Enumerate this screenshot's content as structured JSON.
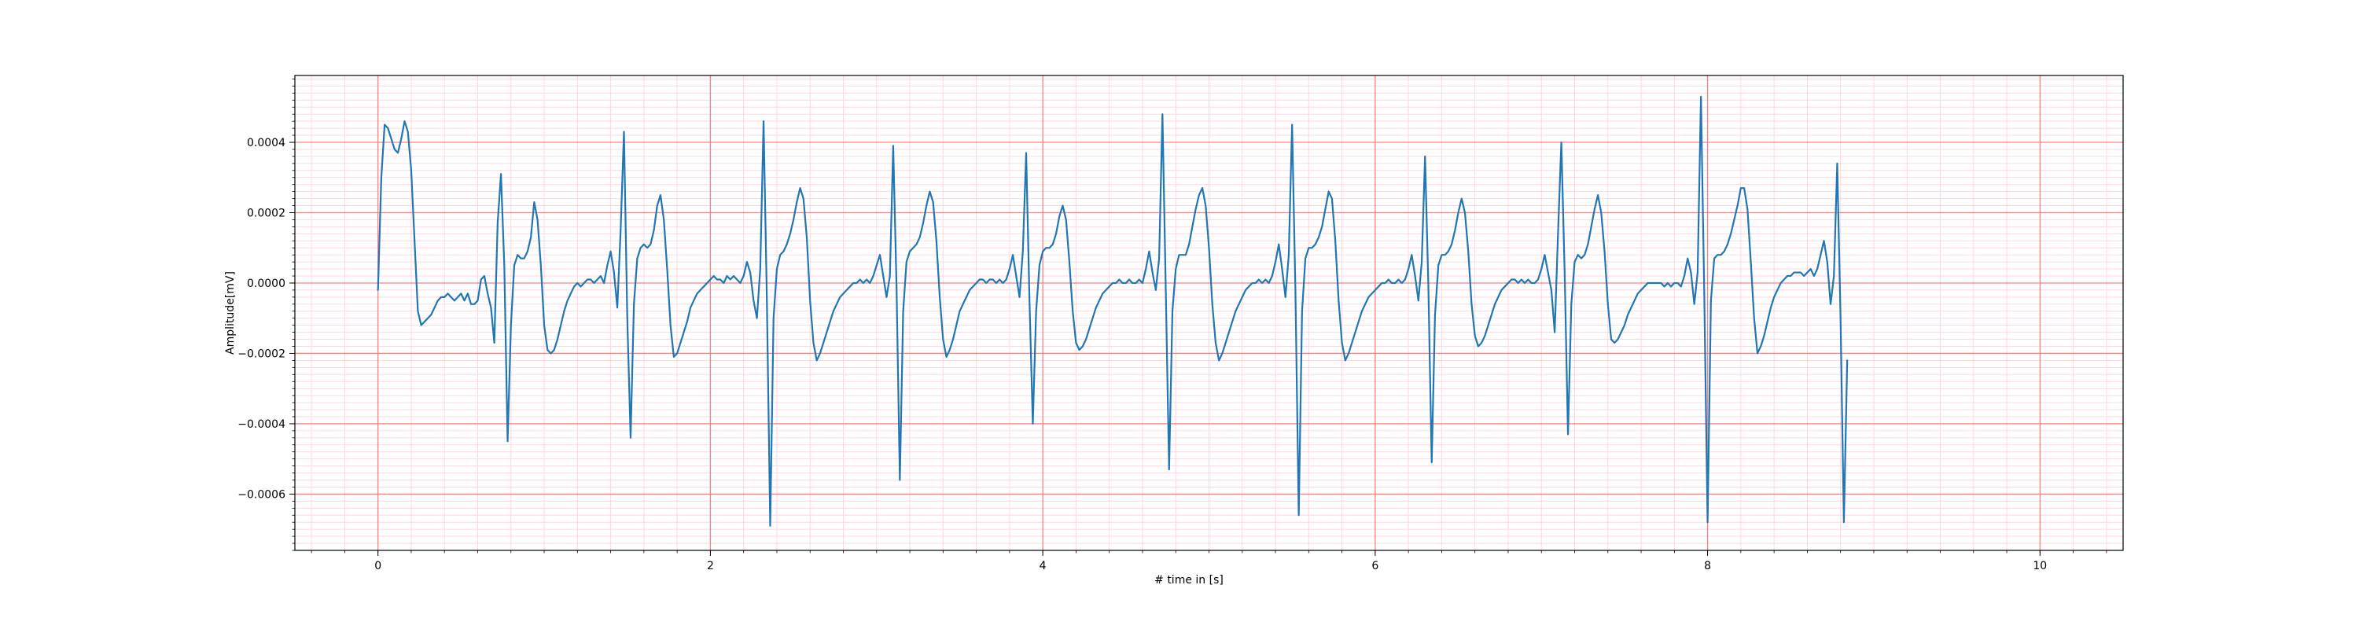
{
  "chart_data": {
    "type": "line",
    "title": "",
    "xlabel": "# time in [s]",
    "ylabel": "Amplitude[mV]",
    "xlim": [
      -0.5,
      10.5
    ],
    "ylim": [
      -0.00076,
      0.00059
    ],
    "x_ticks": [
      0,
      2,
      4,
      6,
      8,
      10
    ],
    "x_tick_labels": [
      "0",
      "2",
      "4",
      "6",
      "8",
      "10"
    ],
    "y_ticks": [
      -0.0006,
      -0.0004,
      -0.0002,
      0.0,
      0.0002,
      0.0004
    ],
    "y_tick_labels": [
      "−0.0006",
      "−0.0004",
      "−0.0002",
      "0.0000",
      "0.0002",
      "0.0004"
    ],
    "grid": {
      "major": true,
      "minor": true,
      "major_color": "#ff8080",
      "minor_color": "#ffd6e0"
    },
    "legend": "none",
    "line_color": "#1f77b4",
    "sampling": {
      "x_start": 0.0,
      "x_end": 10.0,
      "step": 0.02
    },
    "series": [
      {
        "values": [
          -2e-05,
          0.0003,
          0.00045,
          0.00044,
          0.00041,
          0.00038,
          0.00037,
          0.00041,
          0.00046,
          0.00043,
          0.00032,
          0.00012,
          -8e-05,
          -0.00012,
          -0.00011,
          -0.0001,
          -9e-05,
          -7e-05,
          -5e-05,
          -4e-05,
          -4e-05,
          -3e-05,
          -4e-05,
          -5e-05,
          -4e-05,
          -3e-05,
          -5e-05,
          -3e-05,
          -6e-05,
          -6e-05,
          -5e-05,
          1e-05,
          2e-05,
          -3e-05,
          -7e-05,
          -0.00017,
          0.00017,
          0.00031,
          5e-05,
          -0.00045,
          -0.00012,
          5e-05,
          8e-05,
          7e-05,
          7e-05,
          9e-05,
          0.00013,
          0.00023,
          0.00018,
          5e-05,
          -0.00012,
          -0.00019,
          -0.0002,
          -0.00019,
          -0.00016,
          -0.00012,
          -8e-05,
          -5e-05,
          -3e-05,
          -1e-05,
          0.0,
          -1e-05,
          0.0,
          1e-05,
          1e-05,
          0.0,
          1e-05,
          2e-05,
          0.0,
          5e-05,
          9e-05,
          3e-05,
          -7e-05,
          0.00015,
          0.00043,
          -0.0001,
          -0.00044,
          -6e-05,
          7e-05,
          0.0001,
          0.00011,
          0.0001,
          0.00011,
          0.00015,
          0.00022,
          0.00025,
          0.00018,
          4e-05,
          -0.00012,
          -0.00021,
          -0.0002,
          -0.00017,
          -0.00014,
          -0.00011,
          -7e-05,
          -5e-05,
          -3e-05,
          -2e-05,
          -1e-05,
          0.0,
          1e-05,
          2e-05,
          1e-05,
          1e-05,
          0.0,
          2e-05,
          1e-05,
          2e-05,
          1e-05,
          0.0,
          2e-05,
          6e-05,
          3e-05,
          -5e-05,
          -0.0001,
          4e-05,
          0.00046,
          -5e-05,
          -0.00069,
          -0.0001,
          4e-05,
          8e-05,
          9e-05,
          0.00011,
          0.00014,
          0.00018,
          0.00023,
          0.00027,
          0.00024,
          0.00013,
          -5e-05,
          -0.00017,
          -0.00022,
          -0.0002,
          -0.00017,
          -0.00014,
          -0.00011,
          -8e-05,
          -6e-05,
          -4e-05,
          -3e-05,
          -2e-05,
          -1e-05,
          0.0,
          0.0,
          1e-05,
          0.0,
          1e-05,
          0.0,
          2e-05,
          5e-05,
          8e-05,
          2e-05,
          -4e-05,
          2e-05,
          0.00039,
          -1e-05,
          -0.00056,
          -8e-05,
          6e-05,
          9e-05,
          0.0001,
          0.00011,
          0.00013,
          0.00017,
          0.00022,
          0.00026,
          0.00023,
          0.00012,
          -4e-05,
          -0.00016,
          -0.00021,
          -0.00019,
          -0.00016,
          -0.00012,
          -8e-05,
          -6e-05,
          -4e-05,
          -2e-05,
          -1e-05,
          0.0,
          1e-05,
          1e-05,
          0.0,
          1e-05,
          1e-05,
          0.0,
          1e-05,
          0.0,
          1e-05,
          4e-05,
          8e-05,
          2e-05,
          -4e-05,
          9e-05,
          0.00037,
          -5e-05,
          -0.0004,
          -8e-05,
          5e-05,
          9e-05,
          0.0001,
          0.0001,
          0.00011,
          0.00014,
          0.00019,
          0.00022,
          0.00018,
          6e-05,
          -8e-05,
          -0.00017,
          -0.00019,
          -0.00018,
          -0.00016,
          -0.00013,
          -0.0001,
          -7e-05,
          -5e-05,
          -3e-05,
          -2e-05,
          -1e-05,
          0.0,
          0.0,
          1e-05,
          0.0,
          0.0,
          1e-05,
          0.0,
          0.0,
          1e-05,
          0.0,
          4e-05,
          9e-05,
          3e-05,
          -2e-05,
          7e-05,
          0.00048,
          -2e-05,
          -0.00053,
          -8e-05,
          4e-05,
          8e-05,
          8e-05,
          8e-05,
          0.00011,
          0.00016,
          0.00021,
          0.00025,
          0.00027,
          0.00022,
          0.0001,
          -6e-05,
          -0.00017,
          -0.00022,
          -0.0002,
          -0.00017,
          -0.00014,
          -0.00011,
          -8e-05,
          -6e-05,
          -4e-05,
          -2e-05,
          -1e-05,
          0.0,
          0.0,
          1e-05,
          0.0,
          1e-05,
          0.0,
          2e-05,
          6e-05,
          0.00011,
          4e-05,
          -4e-05,
          8e-05,
          0.00045,
          -2e-05,
          -0.00066,
          -8e-05,
          7e-05,
          0.0001,
          0.0001,
          0.00011,
          0.00013,
          0.00016,
          0.00021,
          0.00026,
          0.00024,
          0.00012,
          -5e-05,
          -0.00017,
          -0.00022,
          -0.0002,
          -0.00017,
          -0.00014,
          -0.00011,
          -8e-05,
          -6e-05,
          -4e-05,
          -3e-05,
          -2e-05,
          -1e-05,
          0.0,
          0.0,
          1e-05,
          0.0,
          0.0,
          1e-05,
          0.0,
          1e-05,
          4e-05,
          8e-05,
          2e-05,
          -5e-05,
          6e-05,
          0.00036,
          -1e-05,
          -0.00051,
          -9e-05,
          5e-05,
          8e-05,
          8e-05,
          9e-05,
          0.00011,
          0.00015,
          0.0002,
          0.00024,
          0.0002,
          9e-05,
          -6e-05,
          -0.00015,
          -0.00018,
          -0.00017,
          -0.00015,
          -0.00012,
          -9e-05,
          -6e-05,
          -4e-05,
          -2e-05,
          -1e-05,
          0.0,
          1e-05,
          1e-05,
          0.0,
          1e-05,
          0.0,
          1e-05,
          0.0,
          0.0,
          1e-05,
          4e-05,
          8e-05,
          3e-05,
          -2e-05,
          -0.00014,
          0.00014,
          0.0004,
          3e-05,
          -0.00043,
          -6e-05,
          6e-05,
          8e-05,
          7e-05,
          8e-05,
          0.00011,
          0.00016,
          0.00021,
          0.00025,
          0.0002,
          9e-05,
          -6e-05,
          -0.00016,
          -0.00017,
          -0.00016,
          -0.00014,
          -0.00012,
          -9e-05,
          -7e-05,
          -5e-05,
          -3e-05,
          -2e-05,
          -1e-05,
          0.0,
          0.0,
          0.0,
          0.0,
          0.0,
          -1e-05,
          0.0,
          -1e-05,
          0.0,
          0.0,
          -1e-05,
          2e-05,
          7e-05,
          3e-05,
          -6e-05,
          3e-05,
          0.00053,
          -3e-05,
          -0.00068,
          -5e-05,
          7e-05,
          8e-05,
          8e-05,
          9e-05,
          0.00011,
          0.00014,
          0.00018,
          0.00022,
          0.00027,
          0.00027,
          0.00021,
          6e-05,
          -0.0001,
          -0.0002,
          -0.00018,
          -0.00015,
          -0.00011,
          -7e-05,
          -4e-05,
          -2e-05,
          0.0,
          1e-05,
          2e-05,
          2e-05,
          3e-05,
          3e-05,
          3e-05,
          2e-05,
          3e-05,
          4e-05,
          2e-05,
          4e-05,
          8e-05,
          0.00012,
          6e-05,
          -6e-05,
          2e-05,
          0.00034,
          -0.0001,
          -0.00068,
          -0.00022
        ]
      }
    ]
  }
}
